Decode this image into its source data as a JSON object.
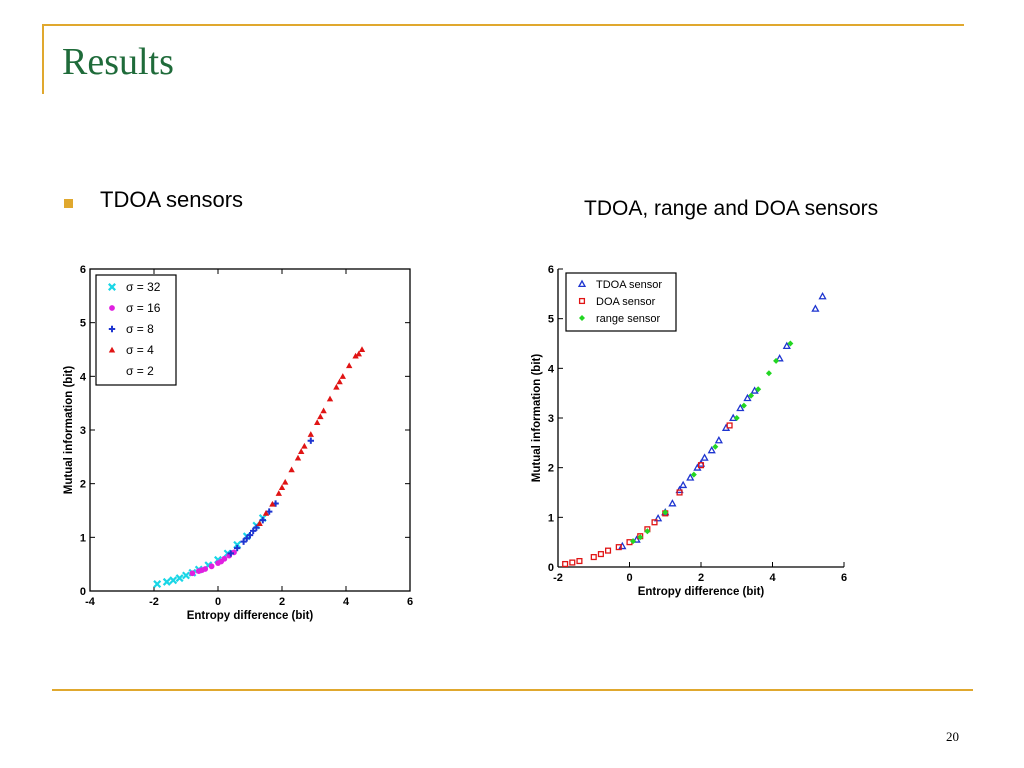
{
  "slide": {
    "title": "Results",
    "bullet_text": "TDOA sensors",
    "right_caption": "TDOA, range and DOA sensors",
    "page_number": "20",
    "colors": {
      "title": "#1F6B3A",
      "accent": "#E0A82E"
    }
  },
  "chart_data": [
    {
      "type": "scatter",
      "title": "",
      "xlabel": "Entropy difference (bit)",
      "ylabel": "Mutual information (bit)",
      "xlim": [
        -4,
        6
      ],
      "ylim": [
        0,
        6
      ],
      "xticks": [
        "-4",
        "-2",
        "0",
        "2",
        "4",
        "6"
      ],
      "yticks": [
        "0",
        "1",
        "2",
        "3",
        "4",
        "5",
        "6"
      ],
      "legend_position": "top-left",
      "series": [
        {
          "name": "σ = 32",
          "color": "#19D6E6",
          "marker": "x",
          "points": [
            [
              -1.9,
              0.13
            ],
            [
              -1.6,
              0.17
            ],
            [
              -1.4,
              0.2
            ],
            [
              -1.2,
              0.24
            ],
            [
              -1.0,
              0.29
            ],
            [
              -0.8,
              0.34
            ],
            [
              -0.6,
              0.4
            ],
            [
              -0.3,
              0.48
            ],
            [
              0.0,
              0.58
            ],
            [
              0.3,
              0.7
            ],
            [
              0.6,
              0.86
            ],
            [
              0.9,
              1.02
            ],
            [
              1.2,
              1.22
            ],
            [
              1.4,
              1.36
            ]
          ]
        },
        {
          "name": "σ = 16",
          "color": "#E020E0",
          "marker": "circle",
          "points": [
            [
              -0.8,
              0.33
            ],
            [
              -0.6,
              0.37
            ],
            [
              -0.4,
              0.41
            ],
            [
              -0.2,
              0.46
            ],
            [
              0.0,
              0.52
            ],
            [
              0.2,
              0.6
            ],
            [
              0.35,
              0.66
            ],
            [
              0.5,
              0.72
            ],
            [
              0.1,
              0.55
            ],
            [
              -0.5,
              0.39
            ]
          ]
        },
        {
          "name": "σ = 8",
          "color": "#1E35D0",
          "marker": "plus",
          "points": [
            [
              0.4,
              0.7
            ],
            [
              0.6,
              0.8
            ],
            [
              0.8,
              0.92
            ],
            [
              1.0,
              1.04
            ],
            [
              1.2,
              1.18
            ],
            [
              1.4,
              1.32
            ],
            [
              1.6,
              1.48
            ],
            [
              1.8,
              1.63
            ],
            [
              2.9,
              2.8
            ],
            [
              0.9,
              0.98
            ],
            [
              1.1,
              1.12
            ]
          ]
        },
        {
          "name": "σ = 4",
          "color": "#E01414",
          "marker": "triangle",
          "points": [
            [
              1.3,
              1.26
            ],
            [
              1.5,
              1.45
            ],
            [
              1.7,
              1.62
            ],
            [
              1.9,
              1.82
            ],
            [
              2.1,
              2.03
            ],
            [
              2.3,
              2.26
            ],
            [
              2.5,
              2.48
            ],
            [
              2.7,
              2.7
            ],
            [
              2.9,
              2.92
            ],
            [
              3.1,
              3.14
            ],
            [
              3.3,
              3.36
            ],
            [
              3.5,
              3.58
            ],
            [
              3.7,
              3.8
            ],
            [
              3.9,
              4.0
            ],
            [
              4.1,
              4.2
            ],
            [
              4.3,
              4.38
            ],
            [
              4.5,
              4.5
            ],
            [
              2.0,
              1.93
            ],
            [
              2.6,
              2.6
            ],
            [
              3.2,
              3.25
            ],
            [
              3.8,
              3.9
            ],
            [
              4.4,
              4.42
            ]
          ]
        },
        {
          "name": "σ = 2",
          "color": "#000000",
          "marker": "none",
          "points": []
        }
      ]
    },
    {
      "type": "scatter",
      "title": "",
      "xlabel": "Entropy difference (bit)",
      "ylabel": "Mutual information (bit)",
      "xlim": [
        -2,
        6
      ],
      "ylim": [
        0,
        6
      ],
      "xticks": [
        "-2",
        "0",
        "2",
        "4",
        "6"
      ],
      "yticks": [
        "0",
        "1",
        "2",
        "3",
        "4",
        "5",
        "6"
      ],
      "legend_position": "top-left",
      "series": [
        {
          "name": "TDOA sensor",
          "color": "#1E35D0",
          "marker": "triangle",
          "points": [
            [
              -0.2,
              0.42
            ],
            [
              0.2,
              0.55
            ],
            [
              0.8,
              0.98
            ],
            [
              1.0,
              1.1
            ],
            [
              1.4,
              1.55
            ],
            [
              1.5,
              1.65
            ],
            [
              1.7,
              1.8
            ],
            [
              1.9,
              2.0
            ],
            [
              2.1,
              2.2
            ],
            [
              2.3,
              2.35
            ],
            [
              2.5,
              2.55
            ],
            [
              2.7,
              2.8
            ],
            [
              2.9,
              3.0
            ],
            [
              3.1,
              3.2
            ],
            [
              3.3,
              3.4
            ],
            [
              3.5,
              3.55
            ],
            [
              4.2,
              4.2
            ],
            [
              4.4,
              4.45
            ],
            [
              5.2,
              5.2
            ],
            [
              5.4,
              5.45
            ],
            [
              1.2,
              1.28
            ],
            [
              2.0,
              2.08
            ]
          ]
        },
        {
          "name": "DOA sensor",
          "color": "#E01414",
          "marker": "square",
          "points": [
            [
              -1.8,
              0.06
            ],
            [
              -1.6,
              0.09
            ],
            [
              -1.4,
              0.12
            ],
            [
              -1.0,
              0.2
            ],
            [
              -0.8,
              0.26
            ],
            [
              -0.6,
              0.33
            ],
            [
              -0.3,
              0.4
            ],
            [
              0.0,
              0.5
            ],
            [
              0.3,
              0.62
            ],
            [
              0.5,
              0.76
            ],
            [
              0.7,
              0.9
            ],
            [
              1.0,
              1.08
            ],
            [
              1.4,
              1.5
            ],
            [
              2.0,
              2.05
            ],
            [
              2.8,
              2.85
            ]
          ]
        },
        {
          "name": "range sensor",
          "color": "#22D622",
          "marker": "diamond",
          "points": [
            [
              0.1,
              0.52
            ],
            [
              0.3,
              0.6
            ],
            [
              0.5,
              0.72
            ],
            [
              1.0,
              1.1
            ],
            [
              1.8,
              1.86
            ],
            [
              2.4,
              2.42
            ],
            [
              3.0,
              3.0
            ],
            [
              3.2,
              3.25
            ],
            [
              3.6,
              3.58
            ],
            [
              3.9,
              3.9
            ],
            [
              4.1,
              4.15
            ],
            [
              4.5,
              4.5
            ],
            [
              3.4,
              3.45
            ]
          ]
        }
      ]
    }
  ]
}
